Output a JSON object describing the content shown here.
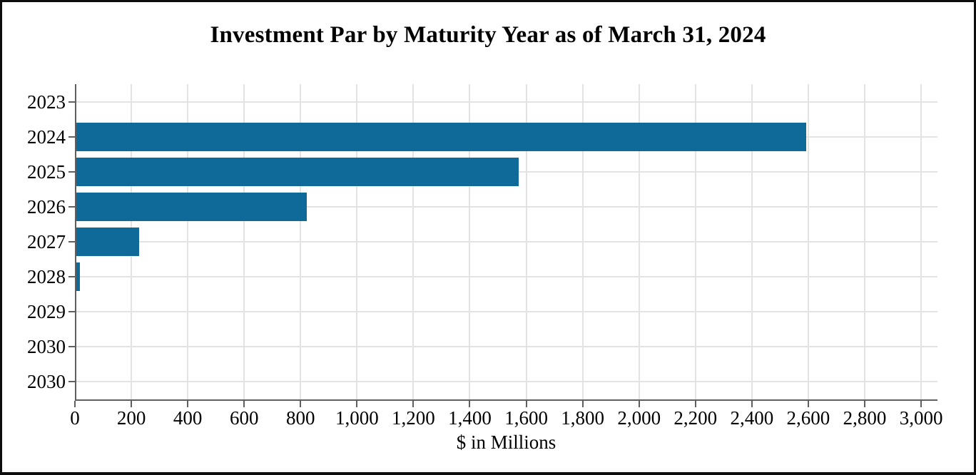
{
  "chart_data": {
    "type": "bar",
    "orientation": "horizontal",
    "title": "Investment Par by Maturity Year as of March 31, 2024",
    "categories": [
      "2023",
      "2024",
      "2025",
      "2026",
      "2027",
      "2028",
      "2029",
      "2030",
      "2030"
    ],
    "values": [
      0,
      2590,
      1570,
      820,
      225,
      15,
      0,
      0,
      0
    ],
    "xlabel": "$ in Millions",
    "ylabel": "",
    "xlim": [
      0,
      3058
    ],
    "x_ticks": [
      {
        "value": 0,
        "label": "0"
      },
      {
        "value": 200,
        "label": "200"
      },
      {
        "value": 400,
        "label": "400"
      },
      {
        "value": 600,
        "label": "600"
      },
      {
        "value": 800,
        "label": "800"
      },
      {
        "value": 1000,
        "label": "1,000"
      },
      {
        "value": 1200,
        "label": "1,200"
      },
      {
        "value": 1400,
        "label": "1,400"
      },
      {
        "value": 1600,
        "label": "1,600"
      },
      {
        "value": 1800,
        "label": "1,800"
      },
      {
        "value": 2000,
        "label": "2,000"
      },
      {
        "value": 2200,
        "label": "2,200"
      },
      {
        "value": 2400,
        "label": "2,400"
      },
      {
        "value": 2600,
        "label": "2,600"
      },
      {
        "value": 2800,
        "label": "2,800"
      },
      {
        "value": 3000,
        "label": "3,000"
      }
    ],
    "grid": true,
    "legend": "none",
    "bar_color": "#0f6a99",
    "grid_color": "#e3e3e3",
    "axis_color": "#5f5f5f",
    "frame_color": "#0d0d0d",
    "background_color": "#ffffff"
  }
}
